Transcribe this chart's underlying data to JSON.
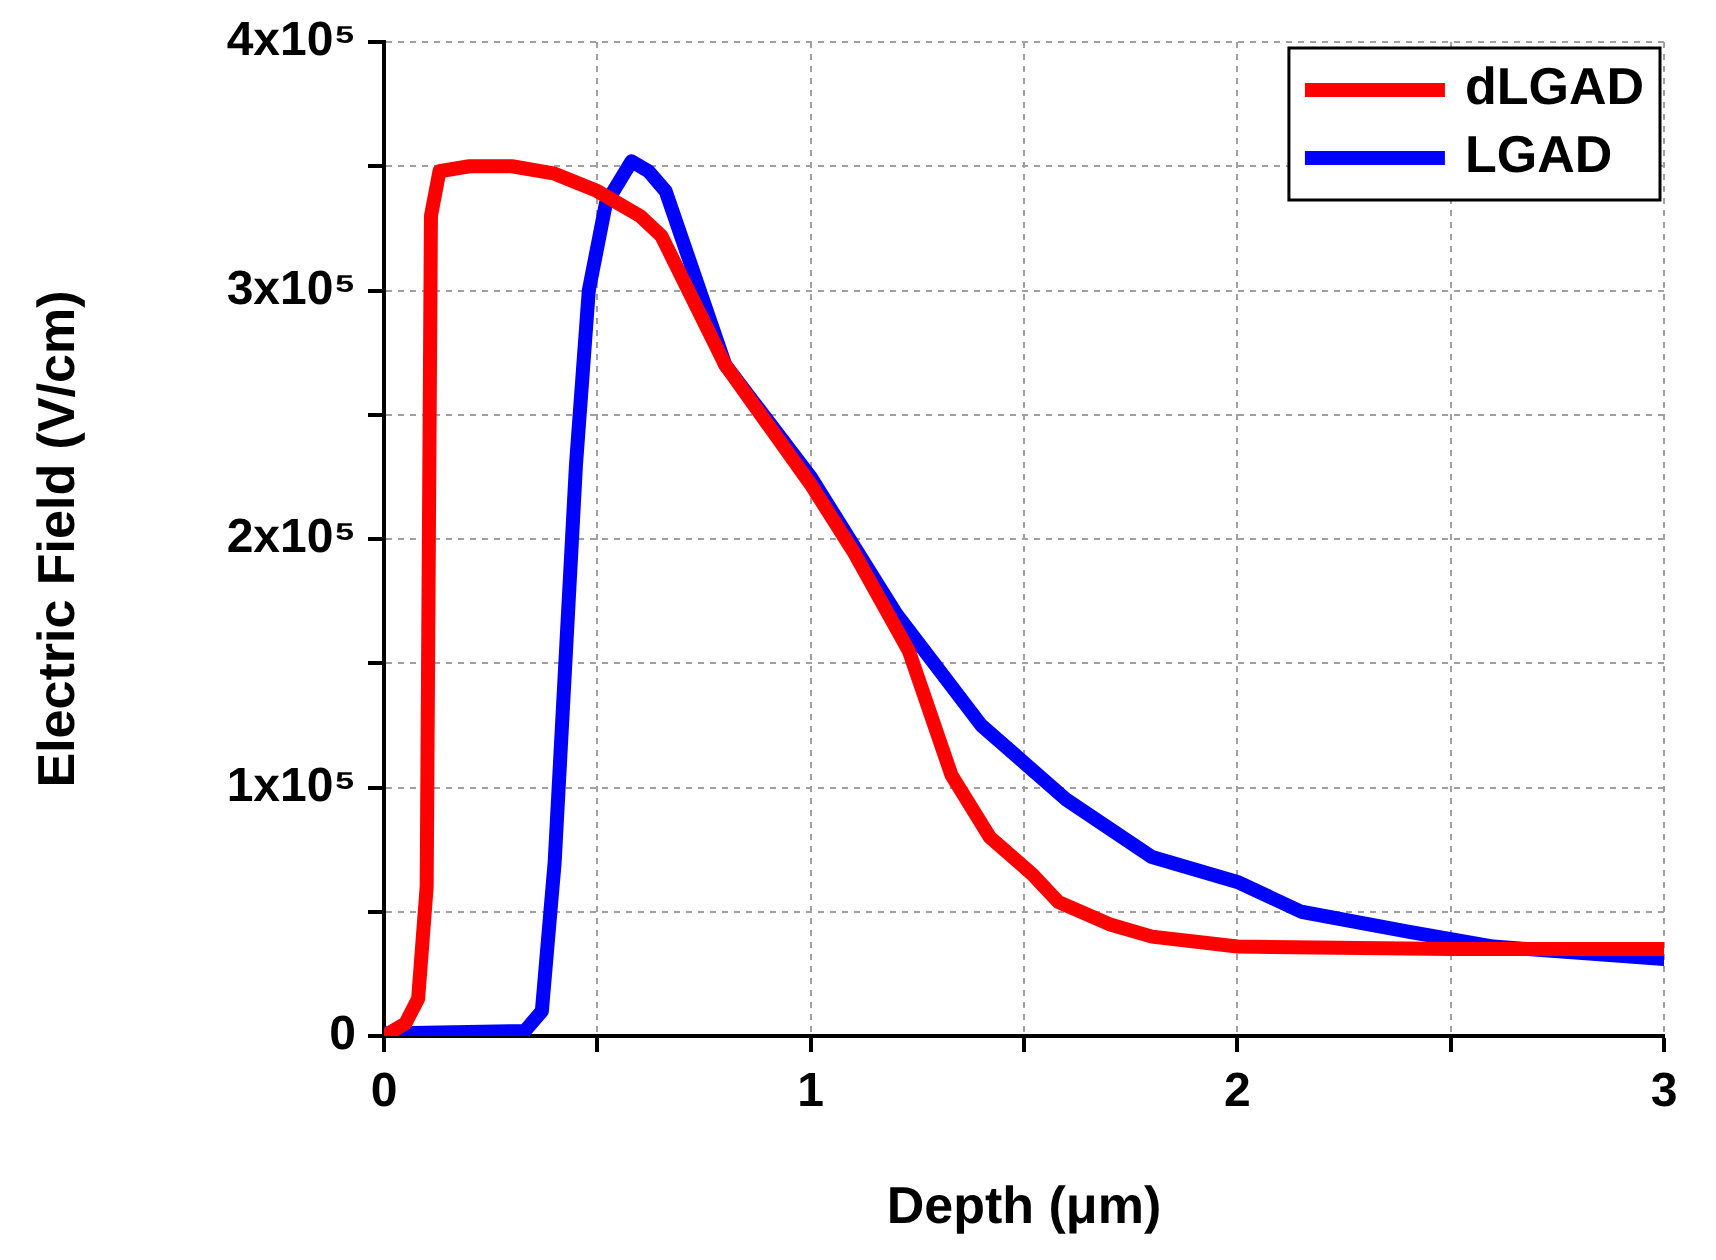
{
  "chart_data": {
    "type": "line",
    "xlabel": "Depth (μm)",
    "ylabel": "Electric Field (V/cm)",
    "xlim": [
      0,
      3
    ],
    "ylim": [
      0,
      400000
    ],
    "xticks": [
      0,
      {
        "value": 0.5,
        "label": null
      },
      1,
      {
        "value": 1.5,
        "label": null
      },
      2,
      {
        "value": 2.5,
        "label": null
      },
      3
    ],
    "yticks": [
      0,
      {
        "value": 50000,
        "label": null
      },
      {
        "value": 100000,
        "label": "1x10⁵"
      },
      {
        "value": 150000,
        "label": null
      },
      {
        "value": 200000,
        "label": "2x10⁵"
      },
      {
        "value": 250000,
        "label": null
      },
      {
        "value": 300000,
        "label": "3x10⁵"
      },
      {
        "value": 350000,
        "label": null
      },
      {
        "value": 400000,
        "label": "4x10⁵"
      }
    ],
    "grid": true,
    "legend": "top right",
    "marker": "none",
    "line_style": "solid",
    "series": [
      {
        "name": "dLGAD",
        "color": "#ff0000",
        "x": [
          0,
          0.05,
          0.08,
          0.1,
          0.11,
          0.13,
          0.2,
          0.3,
          0.4,
          0.5,
          0.6,
          0.65,
          0.8,
          1.0,
          1.1,
          1.23,
          1.33,
          1.42,
          1.52,
          1.58,
          1.7,
          1.8,
          2.0,
          2.5,
          3.0
        ],
        "values": [
          0,
          5000,
          15000,
          60000,
          330000,
          348000,
          350000,
          350000,
          347000,
          340000,
          330000,
          322000,
          270000,
          222000,
          195000,
          155000,
          105000,
          80000,
          65000,
          54000,
          45000,
          40000,
          36000,
          35000,
          35000
        ]
      },
      {
        "name": "LGAD",
        "color": "#0000ff",
        "x": [
          0,
          0.33,
          0.37,
          0.4,
          0.45,
          0.48,
          0.52,
          0.58,
          0.62,
          0.66,
          0.8,
          1.0,
          1.2,
          1.4,
          1.6,
          1.8,
          2.0,
          2.15,
          2.4,
          2.6,
          3.0
        ],
        "values": [
          1000,
          2000,
          10000,
          70000,
          230000,
          300000,
          335000,
          352000,
          348000,
          340000,
          270000,
          225000,
          170000,
          125000,
          95000,
          72000,
          62000,
          50000,
          42000,
          36000,
          31000
        ]
      }
    ]
  }
}
